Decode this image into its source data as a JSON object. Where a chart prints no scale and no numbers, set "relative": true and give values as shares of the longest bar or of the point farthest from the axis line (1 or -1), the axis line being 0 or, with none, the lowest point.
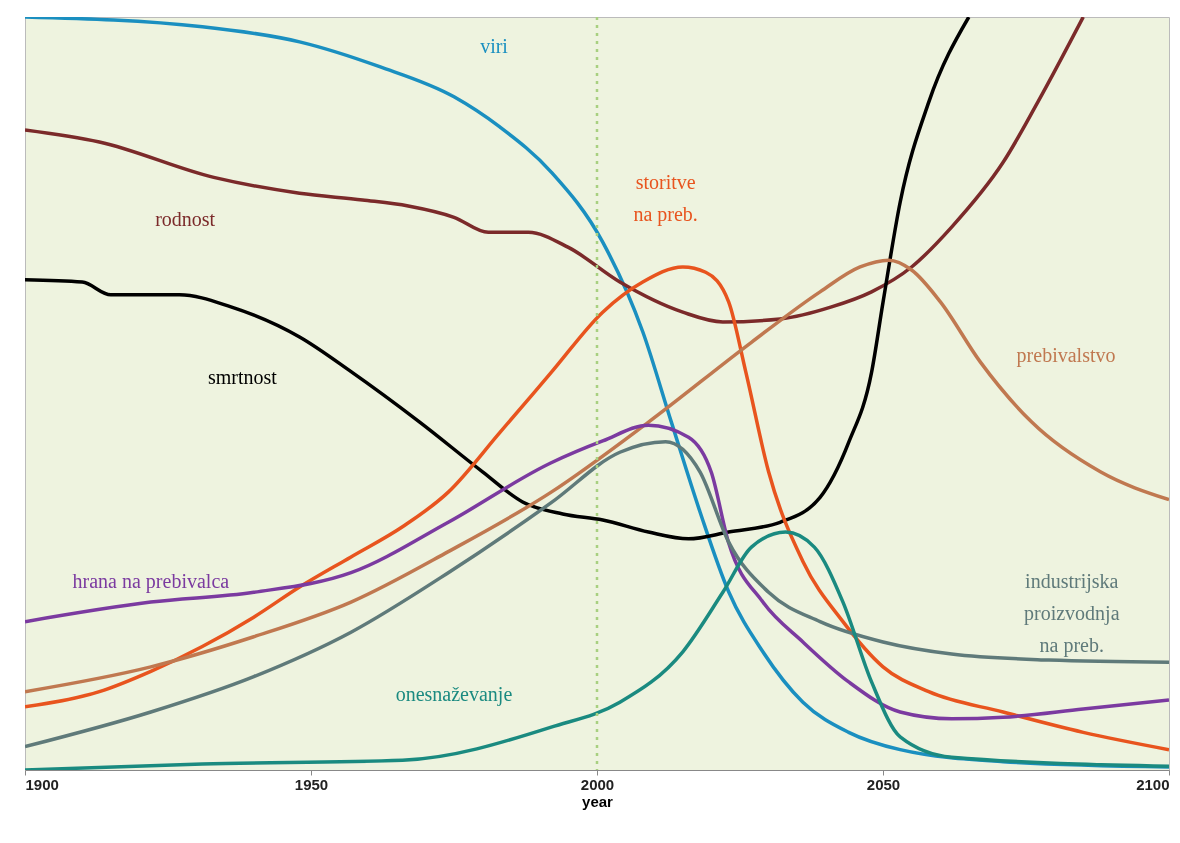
{
  "chart_data": {
    "type": "line",
    "relative": true,
    "xlabel": "year",
    "xlim": [
      1900,
      2100
    ],
    "xticks": [
      1900,
      1950,
      2000,
      2050,
      2100
    ],
    "ref_lines": [
      {
        "axis": "x",
        "value": 2000,
        "color": "#a8d080",
        "line_style": "dotted"
      }
    ],
    "series": [
      {
        "name": "viri",
        "color": "#1a8fc0",
        "x": [
          1900,
          1931,
          1948,
          1962,
          1975,
          1983,
          1992,
          2001,
          2008,
          2013,
          2018,
          2023,
          2029,
          2036,
          2044,
          2053,
          2071,
          2100
        ],
        "values": [
          1.0,
          0.987,
          0.967,
          0.934,
          0.894,
          0.854,
          0.794,
          0.701,
          0.582,
          0.462,
          0.343,
          0.237,
          0.157,
          0.09,
          0.05,
          0.027,
          0.011,
          0.004
        ]
      },
      {
        "name": "rodnost",
        "color": "#7b2a2a",
        "x": [
          1900,
          1913,
          1933,
          1948,
          1959,
          1967,
          1975,
          1981,
          1988,
          1995,
          2004,
          2015,
          2022,
          2032,
          2041,
          2048,
          2055,
          2062,
          2071,
          2078,
          2085
        ],
        "values": [
          0.85,
          0.834,
          0.787,
          0.766,
          0.757,
          0.749,
          0.734,
          0.714,
          0.714,
          0.694,
          0.648,
          0.608,
          0.595,
          0.599,
          0.615,
          0.635,
          0.668,
          0.721,
          0.807,
          0.9,
          1.0
        ]
      },
      {
        "name": "smrtnost",
        "color": "#000000",
        "x": [
          1900,
          1910,
          1915,
          1927,
          1936,
          1948,
          1957,
          1969,
          1980,
          1987,
          1994,
          2001,
          2009,
          2016,
          2023,
          2032,
          2039,
          2044,
          2048,
          2050,
          2053,
          2058,
          2065
        ],
        "values": [
          0.651,
          0.648,
          0.631,
          0.631,
          0.615,
          0.575,
          0.529,
          0.462,
          0.396,
          0.356,
          0.34,
          0.332,
          0.316,
          0.307,
          0.316,
          0.329,
          0.362,
          0.435,
          0.528,
          0.621,
          0.754,
          0.887,
          1.0
        ]
      },
      {
        "name": "storitve\nna preb.",
        "color": "#e8541e",
        "x": [
          1900,
          1913,
          1922,
          1931,
          1940,
          1948,
          1957,
          1966,
          1974,
          1983,
          1992,
          2001,
          2008,
          2015,
          2019,
          2023,
          2026,
          2030,
          2036,
          2043,
          2050,
          2058,
          2071,
          2085,
          2100
        ],
        "values": [
          0.084,
          0.104,
          0.131,
          0.164,
          0.203,
          0.243,
          0.283,
          0.323,
          0.369,
          0.448,
          0.528,
          0.608,
          0.648,
          0.668,
          0.661,
          0.622,
          0.529,
          0.396,
          0.277,
          0.197,
          0.137,
          0.104,
          0.077,
          0.05,
          0.027
        ]
      },
      {
        "name": "prebivalstvo",
        "color": "#c07850",
        "x": [
          1900,
          1922,
          1940,
          1957,
          1974,
          1992,
          2009,
          2027,
          2039,
          2046,
          2051,
          2055,
          2060,
          2067,
          2076,
          2088,
          2100
        ],
        "values": [
          0.104,
          0.137,
          0.177,
          0.223,
          0.29,
          0.369,
          0.462,
          0.568,
          0.635,
          0.668,
          0.677,
          0.664,
          0.622,
          0.542,
          0.462,
          0.396,
          0.359
        ]
      },
      {
        "name": "hrana na prebivalca",
        "color": "#7b3aa0",
        "x": [
          1900,
          1922,
          1940,
          1957,
          1974,
          1992,
          2001,
          2009,
          2016,
          2020,
          2023,
          2029,
          2036,
          2044,
          2053,
          2062,
          2071,
          2085,
          2100
        ],
        "values": [
          0.197,
          0.223,
          0.236,
          0.262,
          0.329,
          0.408,
          0.437,
          0.458,
          0.442,
          0.395,
          0.302,
          0.223,
          0.17,
          0.117,
          0.077,
          0.068,
          0.07,
          0.081,
          0.093
        ]
      },
      {
        "name": "industrijska\nproizvodnja\nna preb.",
        "color": "#5f7a7a",
        "x": [
          1900,
          1922,
          1940,
          1957,
          1974,
          1992,
          2004,
          2012,
          2018,
          2023,
          2030,
          2039,
          2050,
          2062,
          2079,
          2100
        ],
        "values": [
          0.031,
          0.077,
          0.124,
          0.183,
          0.262,
          0.355,
          0.422,
          0.436,
          0.396,
          0.303,
          0.236,
          0.197,
          0.17,
          0.154,
          0.146,
          0.143
        ]
      },
      {
        "name": "onesnaževanje",
        "color": "#1a8a80",
        "x": [
          1900,
          1931,
          1966,
          1992,
          2004,
          2015,
          2022,
          2027,
          2033,
          2038,
          2043,
          2048,
          2053,
          2062,
          2100
        ],
        "values": [
          0.0,
          0.008,
          0.013,
          0.057,
          0.09,
          0.157,
          0.236,
          0.296,
          0.316,
          0.296,
          0.223,
          0.117,
          0.044,
          0.017,
          0.005
        ]
      }
    ]
  }
}
